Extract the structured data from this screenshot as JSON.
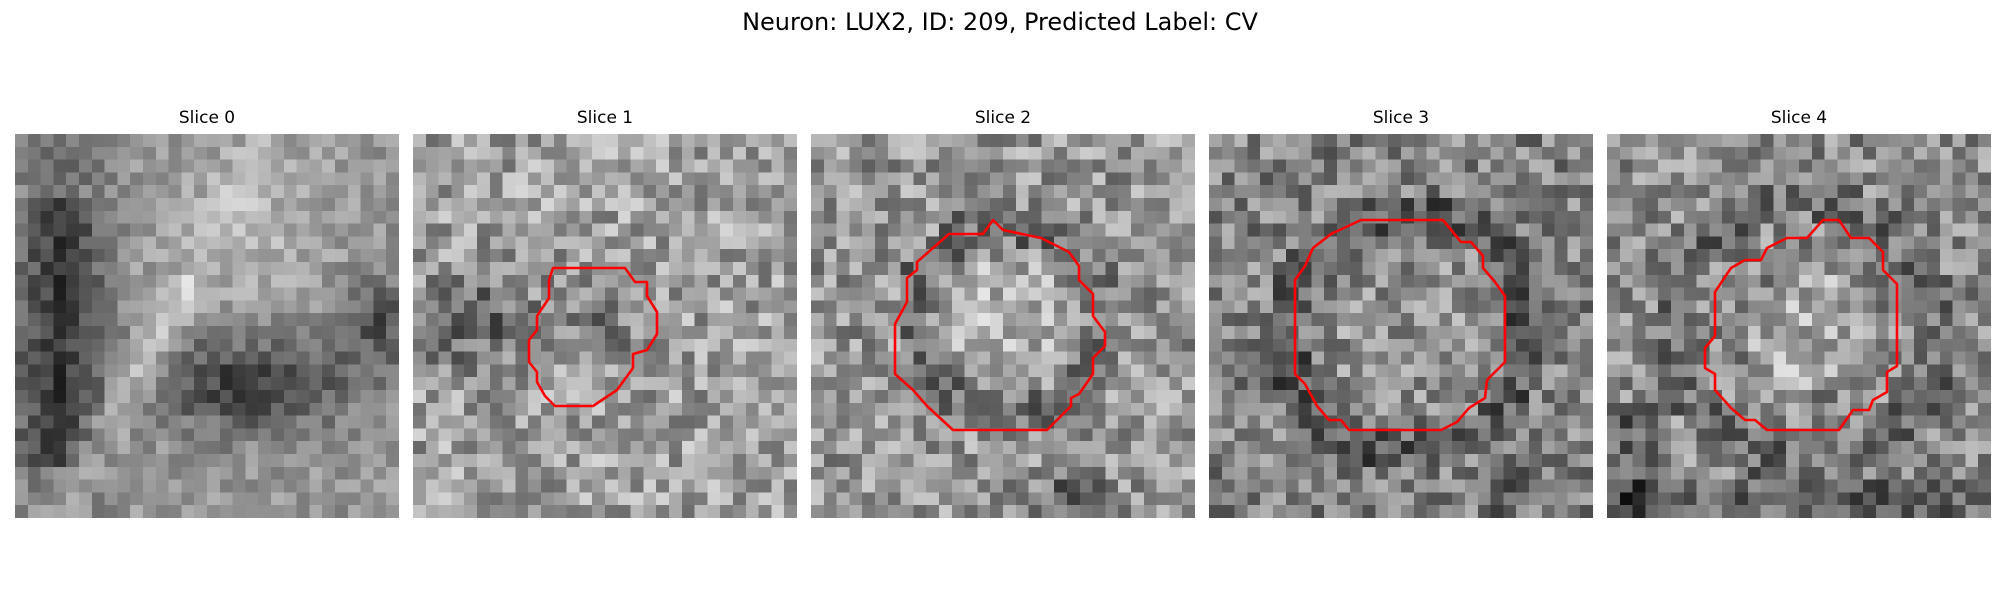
{
  "figure": {
    "title": "Neuron: LUX2, ID: 209, Predicted Label: CV",
    "contour_color": "#ff0000"
  },
  "panels": [
    {
      "title": "Slice 0",
      "has_contour": false
    },
    {
      "title": "Slice 1",
      "has_contour": true
    },
    {
      "title": "Slice 2",
      "has_contour": true
    },
    {
      "title": "Slice 3",
      "has_contour": true
    },
    {
      "title": "Slice 4",
      "has_contour": true
    }
  ]
}
